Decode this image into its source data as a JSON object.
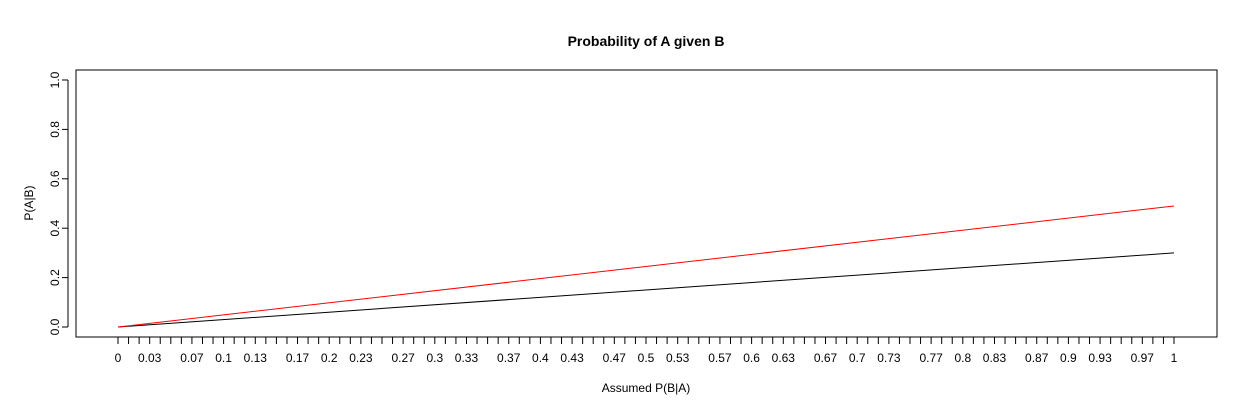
{
  "chart_data": {
    "type": "line",
    "title": "Probability of A given B",
    "xlabel": "Assumed P(B|A)",
    "ylabel": "P(A|B)",
    "xlim": [
      0,
      1
    ],
    "ylim": [
      0,
      1
    ],
    "grid": false,
    "x_ticks": [
      0,
      0.01,
      0.02,
      0.03,
      0.04,
      0.05,
      0.06,
      0.07,
      0.08,
      0.09,
      0.1,
      0.11,
      0.12,
      0.13,
      0.14,
      0.15,
      0.16,
      0.17,
      0.18,
      0.19,
      0.2,
      0.21,
      0.22,
      0.23,
      0.24,
      0.25,
      0.26,
      0.27,
      0.28,
      0.29,
      0.3,
      0.31,
      0.32,
      0.33,
      0.34,
      0.35,
      0.36,
      0.37,
      0.38,
      0.39,
      0.4,
      0.41,
      0.42,
      0.43,
      0.44,
      0.45,
      0.46,
      0.47,
      0.48,
      0.49,
      0.5,
      0.51,
      0.52,
      0.53,
      0.54,
      0.55,
      0.56,
      0.57,
      0.58,
      0.59,
      0.6,
      0.61,
      0.62,
      0.63,
      0.64,
      0.65,
      0.66,
      0.67,
      0.68,
      0.69,
      0.7,
      0.71,
      0.72,
      0.73,
      0.74,
      0.75,
      0.76,
      0.77,
      0.78,
      0.79,
      0.8,
      0.81,
      0.82,
      0.83,
      0.84,
      0.85,
      0.86,
      0.87,
      0.88,
      0.89,
      0.9,
      0.91,
      0.92,
      0.93,
      0.94,
      0.95,
      0.96,
      0.97,
      0.98,
      0.99,
      1
    ],
    "x_tick_labels": [
      "0",
      "0.03",
      "0.07",
      "0.1",
      "0.13",
      "0.17",
      "0.2",
      "0.23",
      "0.27",
      "0.3",
      "0.33",
      "0.37",
      "0.4",
      "0.43",
      "0.47",
      "0.5",
      "0.53",
      "0.57",
      "0.6",
      "0.63",
      "0.67",
      "0.7",
      "0.73",
      "0.77",
      "0.8",
      "0.83",
      "0.87",
      "0.9",
      "0.93",
      "0.97",
      "1"
    ],
    "x_tick_label_values": [
      0,
      0.03,
      0.07,
      0.1,
      0.13,
      0.17,
      0.2,
      0.23,
      0.27,
      0.3,
      0.33,
      0.37,
      0.4,
      0.43,
      0.47,
      0.5,
      0.53,
      0.57,
      0.6,
      0.63,
      0.67,
      0.7,
      0.73,
      0.77,
      0.8,
      0.83,
      0.87,
      0.9,
      0.93,
      0.97,
      1
    ],
    "y_ticks": [
      0,
      0.2,
      0.4,
      0.6,
      0.8,
      1
    ],
    "y_tick_labels": [
      "0.0",
      "0.2",
      "0.4",
      "0.6",
      "0.8",
      "1.0"
    ],
    "series": [
      {
        "color": "#000000",
        "x": [
          0,
          1
        ],
        "y": [
          0,
          0.3
        ]
      },
      {
        "color": "#ff0000",
        "x": [
          0,
          1
        ],
        "y": [
          0,
          0.49
        ]
      }
    ]
  }
}
